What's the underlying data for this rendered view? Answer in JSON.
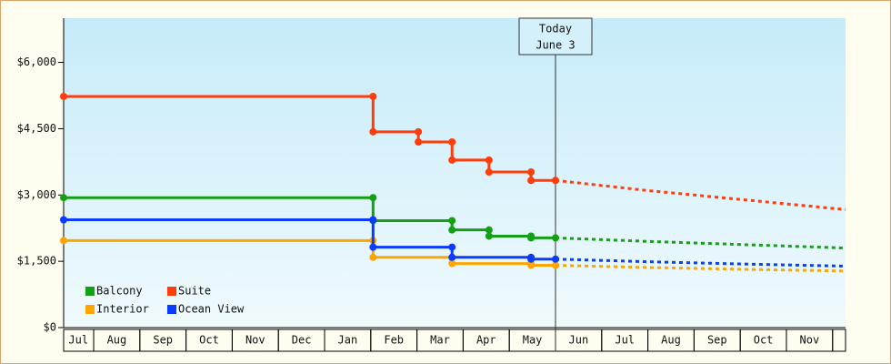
{
  "chart_data": {
    "type": "step-line",
    "xlim": [
      0.35,
      17.28
    ],
    "xticks": [
      {
        "value": 0.67,
        "label": "Jul"
      },
      {
        "value": 1.5,
        "label": "Aug"
      },
      {
        "value": 2.5,
        "label": "Sep"
      },
      {
        "value": 3.5,
        "label": "Oct"
      },
      {
        "value": 4.5,
        "label": "Nov"
      },
      {
        "value": 5.5,
        "label": "Dec"
      },
      {
        "value": 6.5,
        "label": "Jan"
      },
      {
        "value": 7.5,
        "label": "Feb"
      },
      {
        "value": 8.5,
        "label": "Mar"
      },
      {
        "value": 9.5,
        "label": "Apr"
      },
      {
        "value": 10.5,
        "label": "May"
      },
      {
        "value": 11.5,
        "label": "Jun"
      },
      {
        "value": 12.5,
        "label": "Jul"
      },
      {
        "value": 13.5,
        "label": "Aug"
      },
      {
        "value": 14.5,
        "label": "Sep"
      },
      {
        "value": 15.5,
        "label": "Oct"
      },
      {
        "value": 16.5,
        "label": "Nov"
      }
    ],
    "ylim": [
      0,
      7000
    ],
    "yticks": [
      {
        "value": 0,
        "label": "$0"
      },
      {
        "value": 1500,
        "label": "$1,500"
      },
      {
        "value": 3000,
        "label": "$3,000"
      },
      {
        "value": 4500,
        "label": "$4,500"
      },
      {
        "value": 6000,
        "label": "$6,000"
      }
    ],
    "today": {
      "x": 11.0,
      "lines": [
        "Today",
        "June 3"
      ]
    },
    "series": [
      {
        "name": "Balcony",
        "color": "#14a014",
        "x": [
          0.35,
          7.05,
          7.05,
          8.76,
          8.76,
          9.56,
          9.56,
          10.47,
          10.47,
          11.0
        ],
        "values": [
          2940,
          2940,
          2420,
          2420,
          2210,
          2210,
          2070,
          2070,
          2030,
          2030
        ],
        "forecast_x": [
          11.0,
          13,
          15,
          17.28
        ],
        "forecast_values": [
          2030,
          1950,
          1880,
          1800
        ]
      },
      {
        "name": "Suite",
        "color": "#ff3c0a",
        "x": [
          0.35,
          7.05,
          7.05,
          8.03,
          8.03,
          8.76,
          8.76,
          9.56,
          9.56,
          10.47,
          10.47,
          11.0
        ],
        "values": [
          5230,
          5230,
          4430,
          4430,
          4200,
          4200,
          3790,
          3790,
          3520,
          3520,
          3330,
          3330
        ],
        "forecast_x": [
          11.0,
          13,
          15,
          17.28
        ],
        "forecast_values": [
          3330,
          3100,
          2900,
          2670
        ]
      },
      {
        "name": "Interior",
        "color": "#ffa500",
        "x": [
          0.35,
          7.05,
          7.05,
          8.76,
          8.76,
          10.47,
          10.47,
          11.0
        ],
        "values": [
          1970,
          1970,
          1590,
          1590,
          1450,
          1450,
          1410,
          1410
        ],
        "forecast_x": [
          11.0,
          13,
          15,
          17.28
        ],
        "forecast_values": [
          1410,
          1360,
          1320,
          1280
        ]
      },
      {
        "name": "Ocean View",
        "color": "#0a3cff",
        "x": [
          0.35,
          7.05,
          7.05,
          8.76,
          8.76,
          10.47,
          10.47,
          11.0
        ],
        "values": [
          2440,
          2440,
          1820,
          1820,
          1590,
          1590,
          1550,
          1550
        ],
        "forecast_x": [
          11.0,
          13,
          15,
          17.28
        ],
        "forecast_values": [
          1550,
          1490,
          1440,
          1390
        ]
      }
    ]
  }
}
